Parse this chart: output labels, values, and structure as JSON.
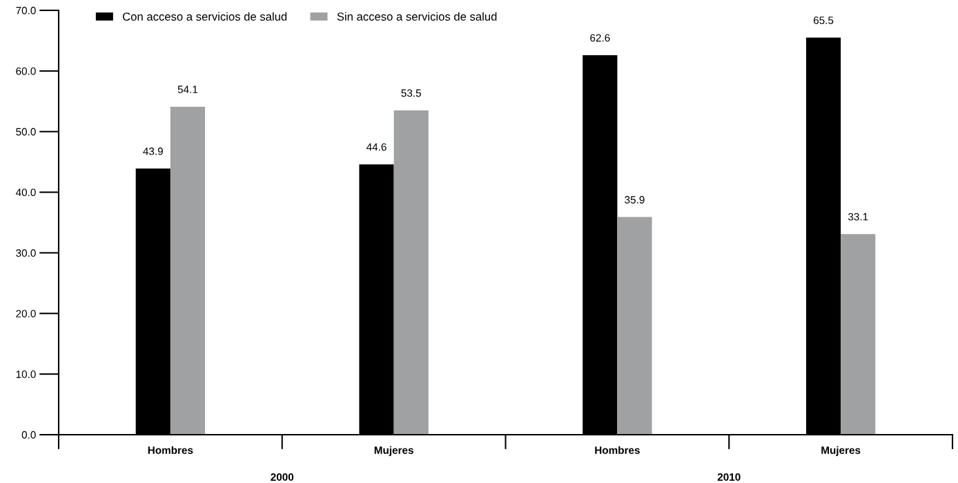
{
  "chart_data": {
    "type": "bar",
    "categories": [
      "Hombres",
      "Mujeres",
      "Hombres",
      "Mujeres"
    ],
    "series": [
      {
        "name": "Con acceso a servicios de salud",
        "color": "#000000",
        "values": [
          43.9,
          44.6,
          62.6,
          65.5
        ]
      },
      {
        "name": "Sin acceso a servicios de salud",
        "color": "#a0a1a3",
        "values": [
          54.1,
          53.5,
          35.9,
          33.1
        ]
      }
    ],
    "ylim": [
      0,
      70
    ],
    "yticks": [
      {
        "value": 0,
        "label": "0.0"
      },
      {
        "value": 10,
        "label": "10.0"
      },
      {
        "value": 20,
        "label": "20.0"
      },
      {
        "value": 30,
        "label": "30.0"
      },
      {
        "value": 40,
        "label": "40.0"
      },
      {
        "value": 50,
        "label": "50.0"
      },
      {
        "value": 60,
        "label": "60.0"
      },
      {
        "value": 70,
        "label": "70.0"
      }
    ],
    "annotations": [
      "2000",
      "2010"
    ],
    "data_labels": true,
    "legend": "top left",
    "grid": false
  }
}
